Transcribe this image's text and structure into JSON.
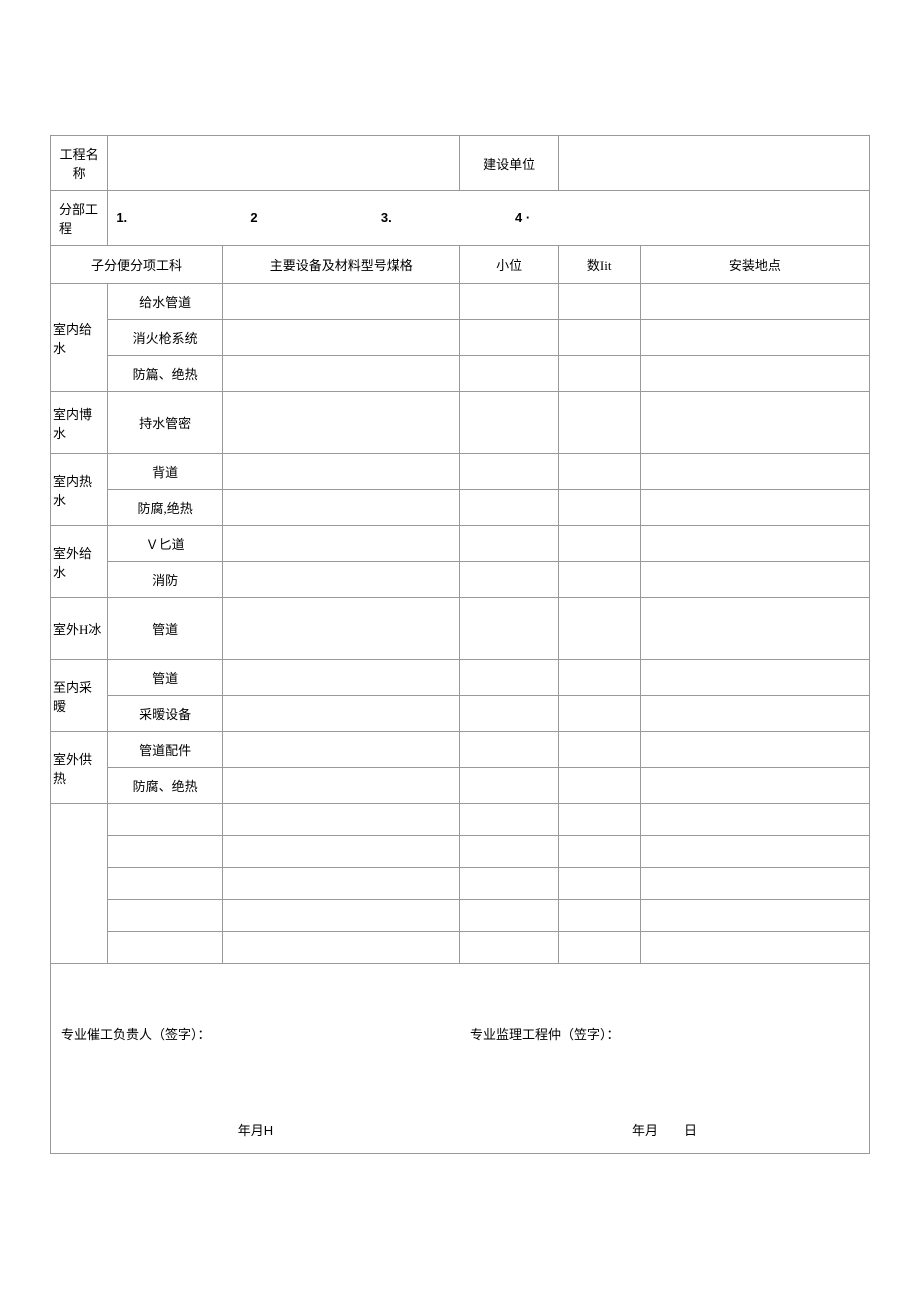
{
  "header": {
    "project_name_label": "工程名称",
    "project_name_value": "",
    "build_unit_label": "建设单位",
    "build_unit_value": "",
    "section_label": "分部工程",
    "section_nums": {
      "n1": "1.",
      "n2": "2",
      "n3": "3.",
      "n4": "4 ·"
    }
  },
  "columns": {
    "c0": "子分便分项工科",
    "c1": "主要设备及材料型号煤格",
    "c2": "小位",
    "c3": "数Iit",
    "c4": "安装地点"
  },
  "rows": [
    {
      "group": "室内给水",
      "span": 3,
      "sub": "给水管道"
    },
    {
      "group": "",
      "sub": "消火枪系统"
    },
    {
      "group": "",
      "sub": "防篇、绝热"
    },
    {
      "group": "室内博水",
      "span": 1,
      "sub": "持水管密",
      "tall": true
    },
    {
      "group": "室内热水",
      "span": 2,
      "sub": "背道"
    },
    {
      "group": "",
      "sub": "防腐,绝热"
    },
    {
      "group": "室外给水",
      "span": 2,
      "sub": "Ｖ匕道"
    },
    {
      "group": "",
      "sub": "消防"
    },
    {
      "group": "室外H冰",
      "span": 1,
      "sub": "管道",
      "tall": true
    },
    {
      "group": "至内采暧",
      "span": 2,
      "sub": "管道"
    },
    {
      "group": "",
      "sub": "采暧设备"
    },
    {
      "group": "室外供热",
      "span": 2,
      "sub": "管道配件"
    },
    {
      "group": "",
      "sub": "防腐、绝热"
    }
  ],
  "empty_rows": 5,
  "signature": {
    "left_label": "专业催工负贵人（签字）：",
    "right_label": "专业监理工程仲（笠字）：",
    "left_date": "年月H",
    "right_date": "年月  日"
  }
}
